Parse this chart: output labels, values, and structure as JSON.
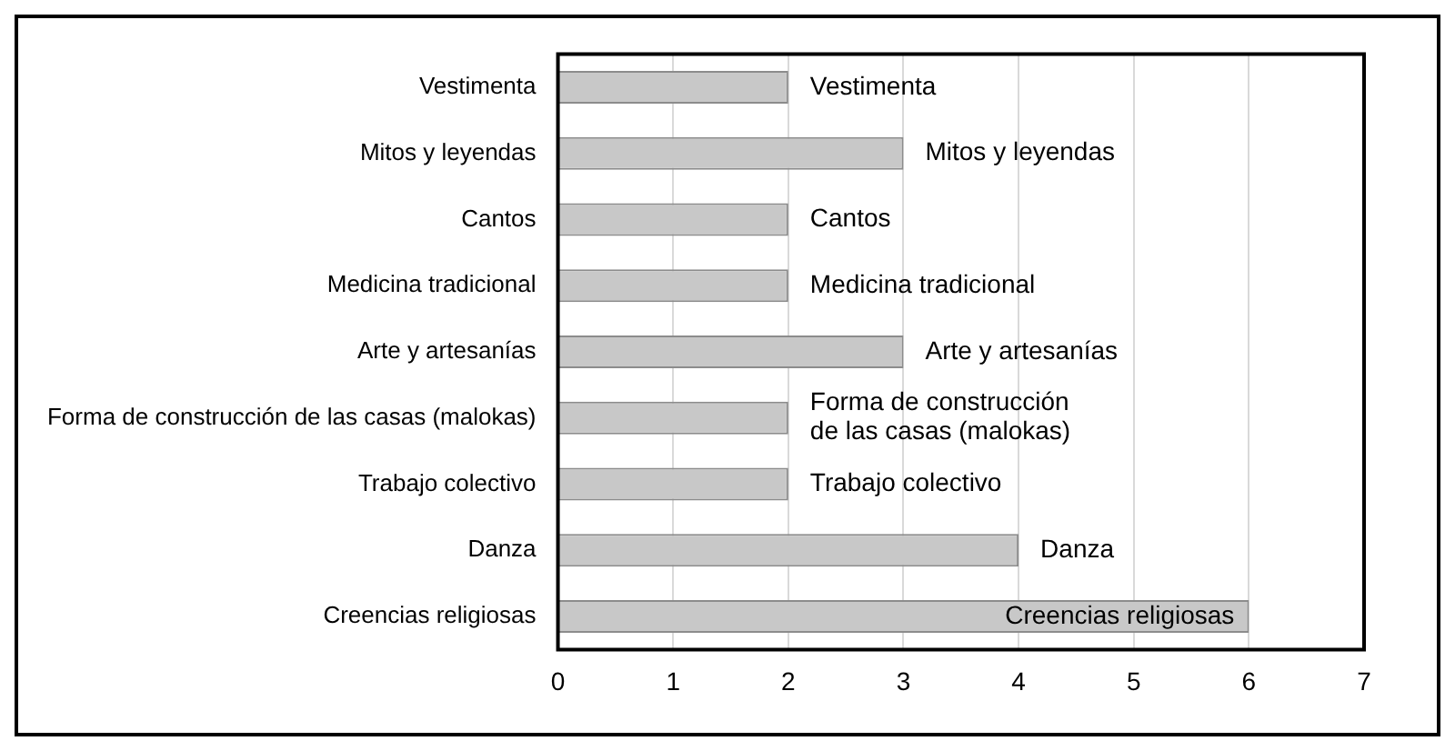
{
  "chart_data": {
    "type": "bar",
    "orientation": "horizontal",
    "categories": [
      "Vestimenta",
      "Mitos y leyendas",
      "Cantos",
      "Medicina tradicional",
      "Arte y artesanías",
      "Forma de construcción de las casas (malokas)",
      "Trabajo colectivo",
      "Danza",
      "Creencias religiosas"
    ],
    "values": [
      2,
      3,
      2,
      2,
      3,
      2,
      2,
      4,
      6
    ],
    "value_labels": [
      "Vestimenta",
      "Mitos y leyendas",
      "Cantos",
      "Medicina tradicional",
      "Arte y artesanías",
      "Forma de construcción de las casas (malokas)",
      "Trabajo colectivo",
      "Danza",
      "Creencias religiosas"
    ],
    "color": "#c8c8c8",
    "xlim": [
      0,
      7
    ],
    "xticks": [
      0,
      1,
      2,
      3,
      4,
      5,
      6,
      7
    ],
    "grid": "x",
    "legend": false
  }
}
